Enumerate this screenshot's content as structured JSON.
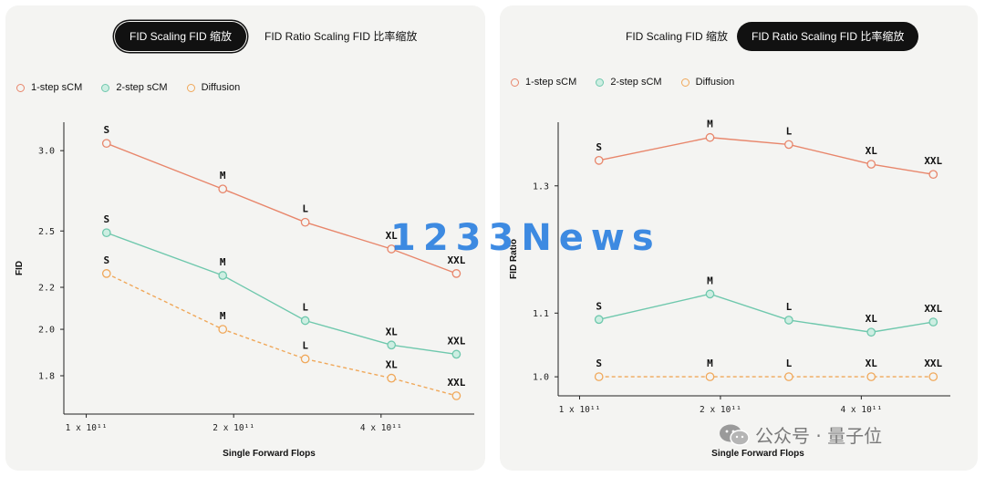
{
  "left_panel": {
    "tabs": [
      {
        "label": "FID Scaling FID 缩放",
        "active": true
      },
      {
        "label": "FID Ratio Scaling FID 比率缩放",
        "active": false
      }
    ]
  },
  "right_panel": {
    "tabs": [
      {
        "label": "FID Scaling FID 缩放",
        "active": false
      },
      {
        "label": "FID Ratio Scaling FID 比率缩放",
        "active": true
      }
    ]
  },
  "legend": [
    {
      "name": "1-step sCM",
      "color": "#e8866b"
    },
    {
      "name": "2-step sCM",
      "color": "#6fc8ad"
    },
    {
      "name": "Diffusion",
      "color": "#f0a85a"
    }
  ],
  "watermark": "1233News",
  "wechat_label": "公众号 · 量子位",
  "chart_data": [
    {
      "type": "line",
      "title": "FID Scaling FID 缩放",
      "xlabel": "Single Forward Flops",
      "ylabel": "FID",
      "xscale": "log",
      "yscale": "log",
      "x": [
        110000000000.0,
        190000000000.0,
        280000000000.0,
        420000000000.0,
        570000000000.0
      ],
      "point_labels": [
        "S",
        "M",
        "L",
        "XL",
        "XXL"
      ],
      "xticks": [
        "1 x 10¹¹",
        "2 x 10¹¹",
        "4 x 10¹¹"
      ],
      "xtick_values": [
        100000000000.0,
        200000000000.0,
        400000000000.0
      ],
      "yticks": [
        "1.8",
        "2.0",
        "2.2",
        "2.5",
        "3.0"
      ],
      "ytick_values": [
        1.8,
        2.0,
        2.2,
        2.5,
        3.0
      ],
      "ylim": [
        1.65,
        3.2
      ],
      "series": [
        {
          "name": "1-step sCM",
          "values": [
            3.05,
            2.75,
            2.55,
            2.4,
            2.27
          ],
          "color": "#e8866b",
          "dashed": false,
          "fill": "none"
        },
        {
          "name": "2-step sCM",
          "values": [
            2.49,
            2.26,
            2.04,
            1.93,
            1.89
          ],
          "color": "#6fc8ad",
          "dashed": false,
          "fill": "#cdeee2"
        },
        {
          "name": "Diffusion",
          "values": [
            2.27,
            2.0,
            1.87,
            1.79,
            1.72
          ],
          "color": "#f0a85a",
          "dashed": true,
          "fill": "none"
        }
      ]
    },
    {
      "type": "line",
      "title": "FID Ratio Scaling FID 比率缩放",
      "xlabel": "Single Forward Flops",
      "ylabel": "FID Ratio",
      "xscale": "log",
      "x": [
        110000000000.0,
        190000000000.0,
        280000000000.0,
        420000000000.0,
        570000000000.0
      ],
      "point_labels": [
        "S",
        "M",
        "L",
        "XL",
        "XXL"
      ],
      "xticks": [
        "1 x 10¹¹",
        "2 x 10¹¹",
        "4 x 10¹¹"
      ],
      "xtick_values": [
        100000000000.0,
        200000000000.0,
        400000000000.0
      ],
      "yticks": [
        "1.0",
        "1.1",
        "1.3"
      ],
      "ytick_values": [
        1.0,
        1.1,
        1.3
      ],
      "ylim": [
        0.97,
        1.4
      ],
      "series": [
        {
          "name": "1-step sCM",
          "values": [
            1.34,
            1.376,
            1.365,
            1.334,
            1.318
          ],
          "color": "#e8866b",
          "dashed": false,
          "fill": "none"
        },
        {
          "name": "2-step sCM",
          "values": [
            1.09,
            1.13,
            1.089,
            1.07,
            1.086
          ],
          "color": "#6fc8ad",
          "dashed": false,
          "fill": "#cdeee2"
        },
        {
          "name": "Diffusion",
          "values": [
            1.0,
            1.0,
            1.0,
            1.0,
            1.0
          ],
          "color": "#f0a85a",
          "dashed": true,
          "fill": "none"
        }
      ]
    }
  ]
}
